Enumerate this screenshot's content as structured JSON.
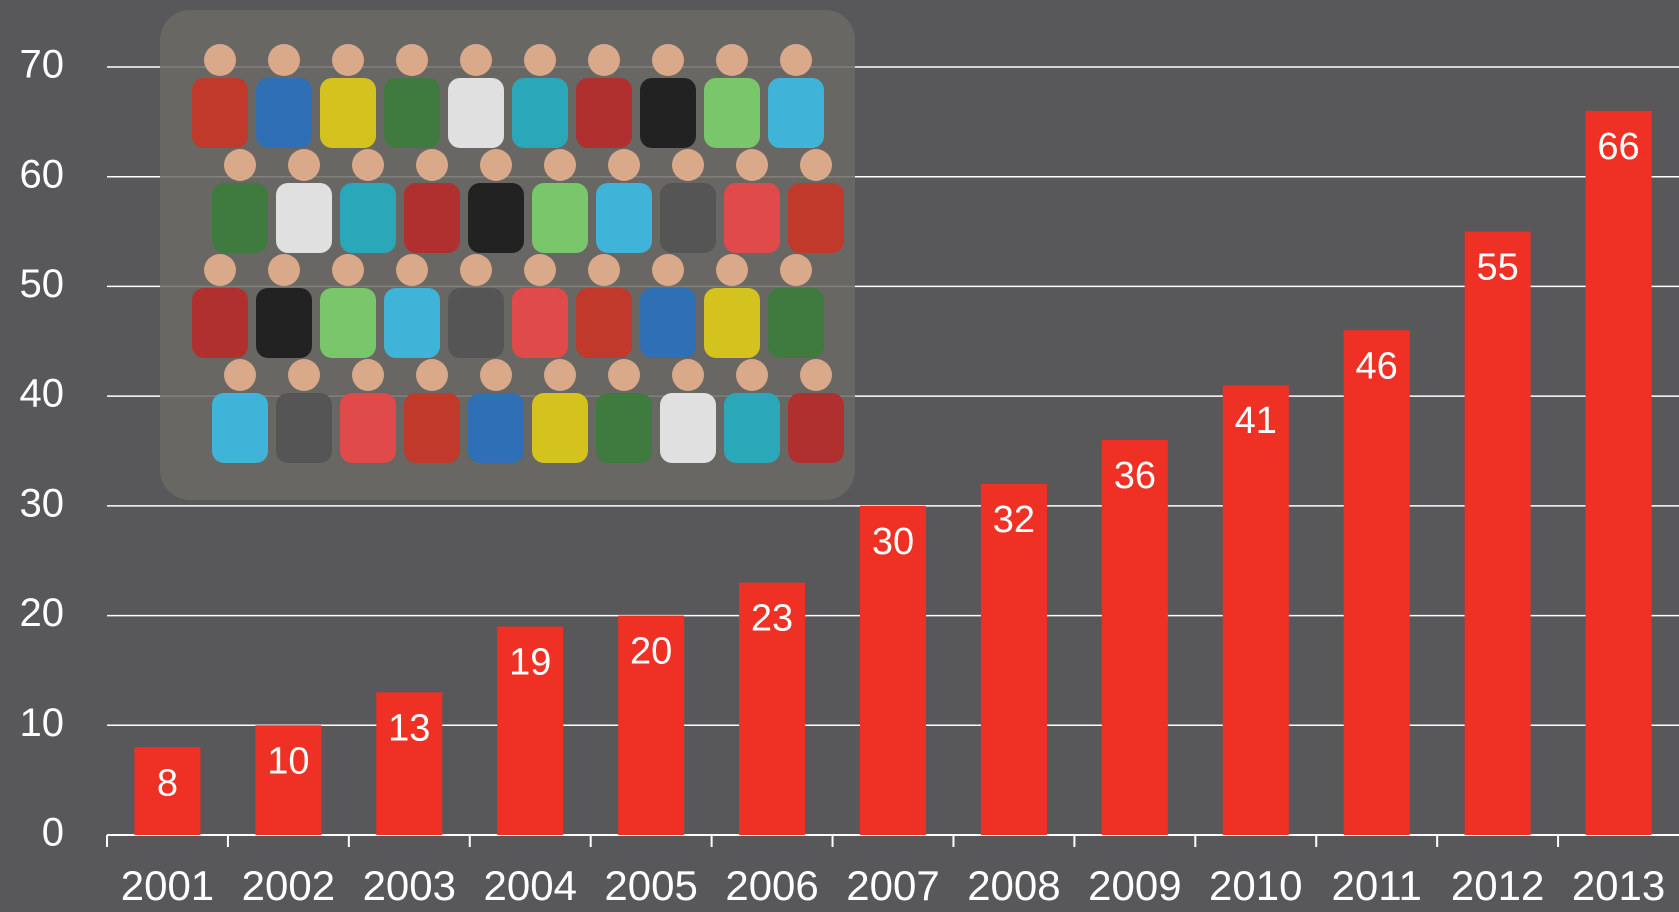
{
  "chart_data": {
    "type": "bar",
    "categories": [
      "2001",
      "2002",
      "2003",
      "2004",
      "2005",
      "2006",
      "2007",
      "2008",
      "2009",
      "2010",
      "2011",
      "2012",
      "2013"
    ],
    "values": [
      8,
      10,
      13,
      19,
      20,
      23,
      30,
      32,
      36,
      41,
      46,
      55,
      66
    ],
    "color": "#ee3124",
    "ylim": [
      0,
      70
    ],
    "yticks": [
      0,
      10,
      20,
      30,
      40,
      50,
      60,
      70
    ],
    "grid": true
  }
}
